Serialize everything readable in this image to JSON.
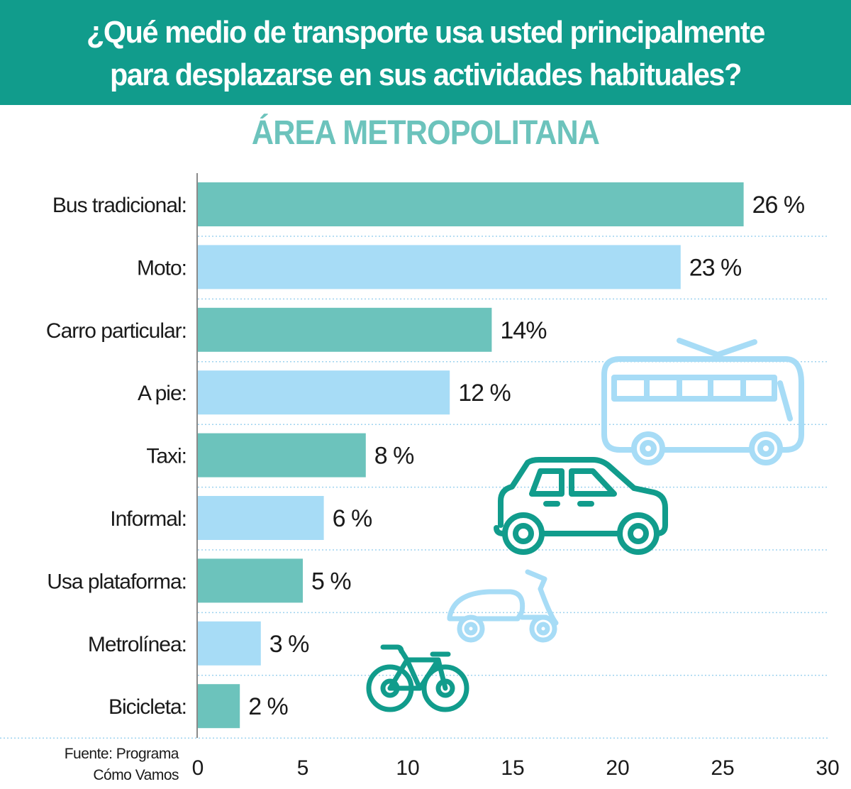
{
  "header": {
    "title_line1": "¿Qué medio de transporte usa usted principalmente",
    "title_line2": "para desplazarse en sus actividades habituales?",
    "subtitle": "ÁREA METROPOLITANA"
  },
  "source": {
    "line1": "Fuente: Programa",
    "line2": "Cómo Vamos"
  },
  "colors": {
    "band": "#119c8c",
    "teal_bar": "#6cc3bc",
    "blue_bar": "#a7dcf6",
    "icon_teal": "#119c8c",
    "icon_blue": "#a7dcf6",
    "grid": "#9fd3ef"
  },
  "icons": [
    "trolleybus-icon",
    "car-icon",
    "scooter-icon",
    "bicycle-icon"
  ],
  "chart_data": {
    "type": "bar",
    "orientation": "horizontal",
    "categories": [
      "Bus tradicional:",
      "Moto:",
      "Carro particular:",
      "A pie:",
      "Taxi:",
      "Informal:",
      "Usa plataforma:",
      "Metrolínea:",
      "Bicicleta:"
    ],
    "values": [
      26,
      23,
      14,
      12,
      8,
      6,
      5,
      3,
      2
    ],
    "value_labels": [
      "26 %",
      "23 %",
      "14%",
      "12 %",
      "8 %",
      "6 %",
      "5 %",
      "3 %",
      "2 %"
    ],
    "bar_colors": [
      "#6cc3bc",
      "#a7dcf6",
      "#6cc3bc",
      "#a7dcf6",
      "#6cc3bc",
      "#a7dcf6",
      "#6cc3bc",
      "#a7dcf6",
      "#6cc3bc"
    ],
    "xlim": [
      0,
      30
    ],
    "xticks": [
      0,
      5,
      10,
      15,
      20,
      25,
      30
    ],
    "grid": true
  }
}
